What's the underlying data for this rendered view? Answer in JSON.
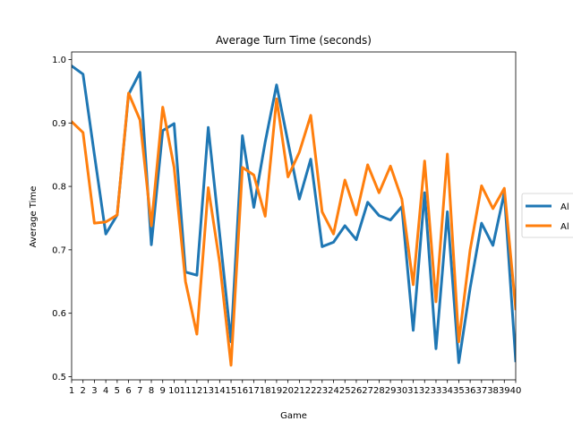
{
  "chart_data": {
    "type": "line",
    "title": "Average Turn Time (seconds)",
    "xlabel": "Game",
    "ylabel": "Average Time",
    "xlim": [
      1,
      40
    ],
    "ylim": [
      0.495,
      1.012
    ],
    "x": [
      1,
      2,
      3,
      4,
      5,
      6,
      7,
      8,
      9,
      10,
      11,
      12,
      13,
      14,
      15,
      16,
      17,
      18,
      19,
      20,
      21,
      22,
      23,
      24,
      25,
      26,
      27,
      28,
      29,
      30,
      31,
      32,
      33,
      34,
      35,
      36,
      37,
      38,
      39,
      40
    ],
    "yticks": [
      0.5,
      0.6,
      0.7,
      0.8,
      0.9,
      1.0
    ],
    "ytick_labels": [
      "0.5",
      "0.6",
      "0.7",
      "0.8",
      "0.9",
      "1.0"
    ],
    "grid": false,
    "legend_position": "right",
    "series": [
      {
        "name": "Al",
        "color": "#1f77b4",
        "values": [
          0.99,
          0.977,
          0.85,
          0.725,
          0.755,
          0.945,
          0.98,
          0.708,
          0.888,
          0.899,
          0.665,
          0.66,
          0.893,
          0.725,
          0.555,
          0.88,
          0.767,
          0.87,
          0.96,
          0.87,
          0.78,
          0.843,
          0.705,
          0.712,
          0.738,
          0.716,
          0.775,
          0.754,
          0.747,
          0.768,
          0.573,
          0.79,
          0.544,
          0.76,
          0.522,
          0.64,
          0.742,
          0.707,
          0.79,
          0.525
        ]
      },
      {
        "name": "Al",
        "color": "#ff7f0e",
        "values": [
          0.902,
          0.885,
          0.742,
          0.744,
          0.755,
          0.947,
          0.905,
          0.738,
          0.925,
          0.83,
          0.65,
          0.567,
          0.798,
          0.68,
          0.518,
          0.83,
          0.818,
          0.753,
          0.938,
          0.815,
          0.854,
          0.912,
          0.76,
          0.725,
          0.81,
          0.755,
          0.834,
          0.79,
          0.832,
          0.78,
          0.645,
          0.84,
          0.618,
          0.851,
          0.555,
          0.7,
          0.801,
          0.765,
          0.797,
          0.607
        ]
      }
    ]
  }
}
